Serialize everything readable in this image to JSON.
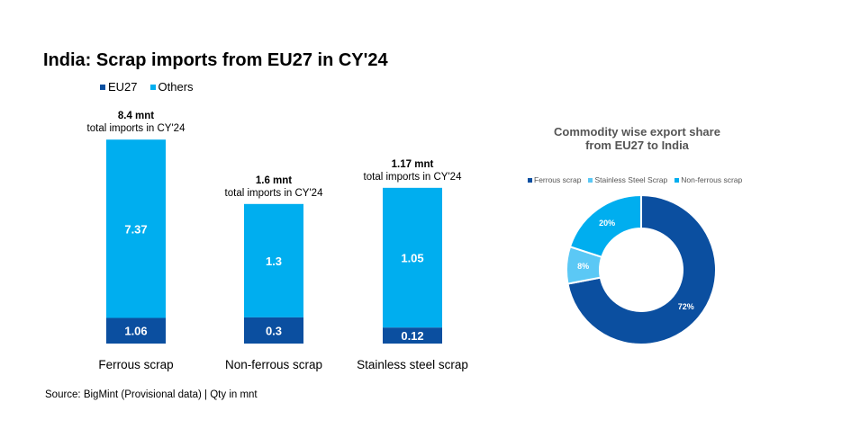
{
  "title": "India: Scrap imports from EU27 in CY'24",
  "legend": [
    {
      "label": "EU27",
      "color": "#0b4fa0"
    },
    {
      "label": "Others",
      "color": "#00aeef"
    }
  ],
  "source": "Source: BigMint (Provisional data) | Qty in mnt",
  "donut_title_line1": "Commodity wise export share",
  "donut_title_line2": "from EU27 to India",
  "donut_legend": [
    {
      "label": "Ferrous scrap",
      "color": "#0b4fa0"
    },
    {
      "label": "Stainless Steel Scrap",
      "color": "#5bc8f5"
    },
    {
      "label": "Non-ferrous scrap",
      "color": "#00aeef"
    }
  ],
  "chart_data": [
    {
      "type": "bar",
      "stacked": true,
      "title": "India: Scrap imports from EU27 in CY'24",
      "categories": [
        "Ferrous scrap",
        "Non-ferrous scrap",
        "Stainless steel scrap"
      ],
      "series": [
        {
          "name": "EU27",
          "values": [
            1.06,
            0.3,
            0.12
          ],
          "labels": [
            "1.06",
            "0.3",
            "0.12"
          ],
          "color": "#0b4fa0"
        },
        {
          "name": "Others",
          "values": [
            7.37,
            1.3,
            1.05
          ],
          "labels": [
            "7.37",
            "1.3",
            "1.05"
          ],
          "color": "#00aeef"
        }
      ],
      "totals": [
        {
          "value": "8.4 mnt",
          "caption": "total imports in CY'24"
        },
        {
          "value": "1.6 mnt",
          "caption": "total imports in CY'24"
        },
        {
          "value": "1.17 mnt",
          "caption": "total imports in CY'24"
        }
      ]
    },
    {
      "type": "pie",
      "donut": true,
      "title": "Commodity wise export share from EU27 to India",
      "slices": [
        {
          "label": "Ferrous scrap",
          "value": 72,
          "text": "72%",
          "color": "#0b4fa0"
        },
        {
          "label": "Stainless Steel Scrap",
          "value": 8,
          "text": "8%",
          "color": "#5bc8f5"
        },
        {
          "label": "Non-ferrous scrap",
          "value": 20,
          "text": "20%",
          "color": "#00aeef"
        }
      ]
    }
  ]
}
